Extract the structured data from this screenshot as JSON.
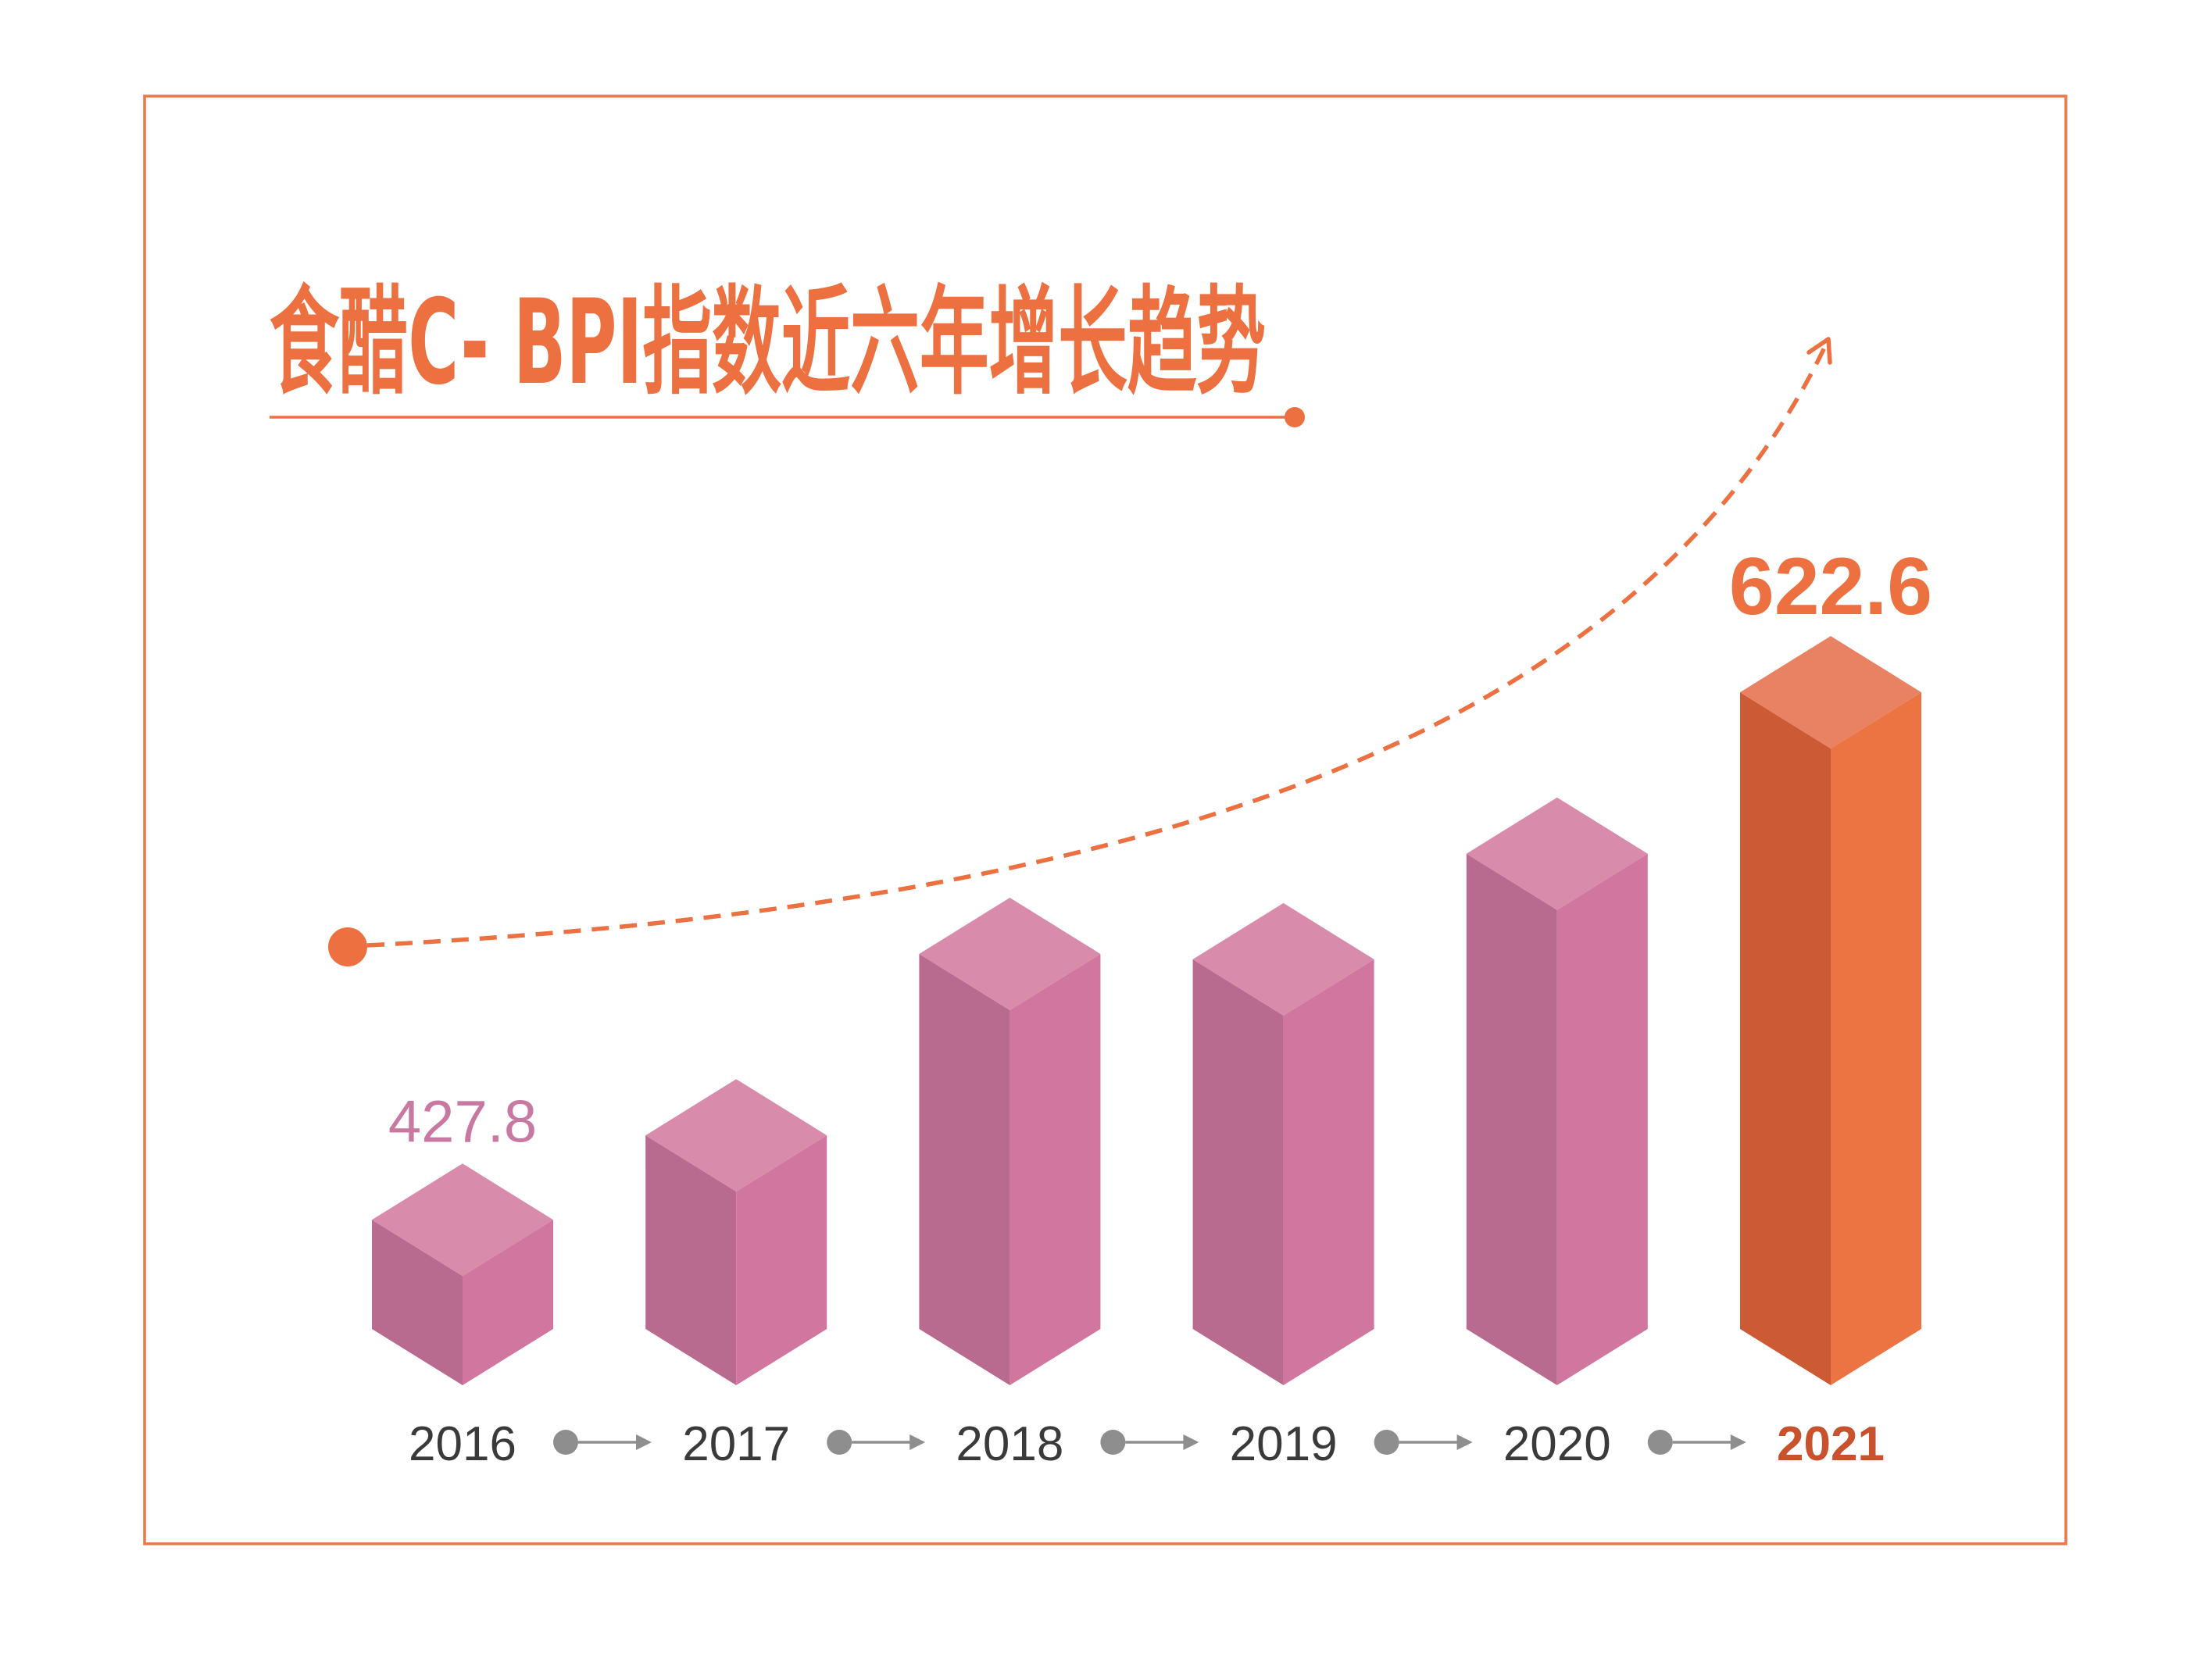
{
  "chart_data": {
    "type": "bar",
    "title": "食醋C- BPI指数近六年增长趋势",
    "categories": [
      "2016",
      "2017",
      "2018",
      "2019",
      "2020",
      "2021"
    ],
    "values": [
      427.8,
      459,
      526,
      524,
      563,
      622.6
    ],
    "data_labels": [
      "427.8",
      "",
      "",
      "",
      "",
      "622.6"
    ],
    "highlight_category": "2021",
    "three_d": true,
    "trend_arrow": true,
    "grid": false,
    "legend": "none",
    "colors": {
      "accent": "#EC7040",
      "frame": "#E9794C",
      "bar_top": "#D88BAB",
      "bar_left": "#B86B8E",
      "bar_right": "#D1769F",
      "highlight_top": "#E88263",
      "highlight_left": "#CC5A34",
      "highlight_right": "#EC7442",
      "label_text": "#C978A2",
      "year_text": "#3A3A3A",
      "highlight_year_text": "#C8522E",
      "connector": "#8E8E8E"
    }
  }
}
